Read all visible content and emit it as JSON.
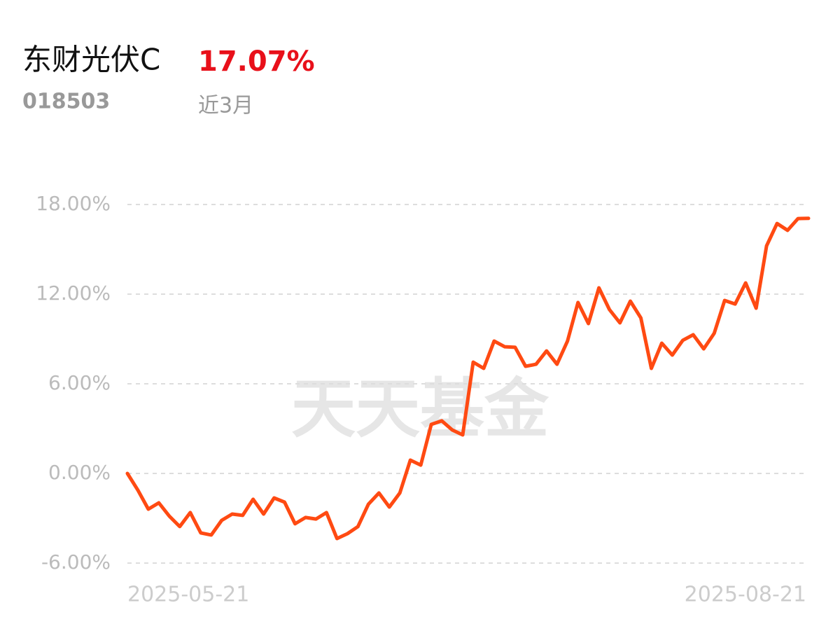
{
  "chart_data": {
    "type": "line",
    "title": "东财光伏C",
    "headline_value": "17.07%",
    "code": "018503",
    "period": "近3月",
    "watermark": "天天基金",
    "categories": [
      "2025-05-21",
      null,
      null,
      null,
      null,
      null,
      null,
      null,
      null,
      null,
      null,
      null,
      null,
      null,
      null,
      null,
      null,
      null,
      null,
      null,
      null,
      null,
      null,
      null,
      null,
      null,
      null,
      null,
      null,
      null,
      null,
      null,
      null,
      null,
      null,
      null,
      null,
      null,
      null,
      null,
      null,
      null,
      null,
      null,
      null,
      null,
      null,
      null,
      null,
      null,
      null,
      null,
      null,
      null,
      null,
      null,
      null,
      null,
      null,
      null,
      null,
      null,
      null,
      null,
      null,
      "2025-08-21"
    ],
    "series": [
      {
        "color": "#ff4a12",
        "values": [
          0,
          -1.12,
          -2.39,
          -1.97,
          -2.86,
          -3.56,
          -2.62,
          -3.98,
          -4.12,
          -3.14,
          -2.72,
          -2.81,
          -1.73,
          -2.72,
          -1.64,
          -1.92,
          -3.37,
          -2.95,
          -3.05,
          -2.62,
          -4.36,
          -4.03,
          -3.56,
          -2.06,
          -1.31,
          -2.25,
          -1.31,
          0.89,
          0.56,
          3.28,
          3.52,
          2.91,
          2.58,
          7.45,
          7.03,
          8.86,
          8.48,
          8.44,
          7.17,
          7.31,
          8.2,
          7.31,
          8.86,
          11.44,
          10.03,
          12.42,
          10.97,
          10.08,
          11.53,
          10.41,
          7.03,
          8.72,
          7.92,
          8.91,
          9.28,
          8.34,
          9.38,
          11.58,
          11.34,
          12.75,
          11.06,
          15.23,
          16.73,
          16.27,
          17.06,
          17.07
        ]
      }
    ],
    "ylim": [
      -6,
      18
    ],
    "yticks": [
      {
        "value": -6,
        "label": "-6.00%"
      },
      {
        "value": 0,
        "label": "0.00%"
      },
      {
        "value": 6,
        "label": "6.00%"
      },
      {
        "value": 12,
        "label": "12.00%"
      },
      {
        "value": 18,
        "label": "18.00%"
      }
    ],
    "grid": true
  }
}
